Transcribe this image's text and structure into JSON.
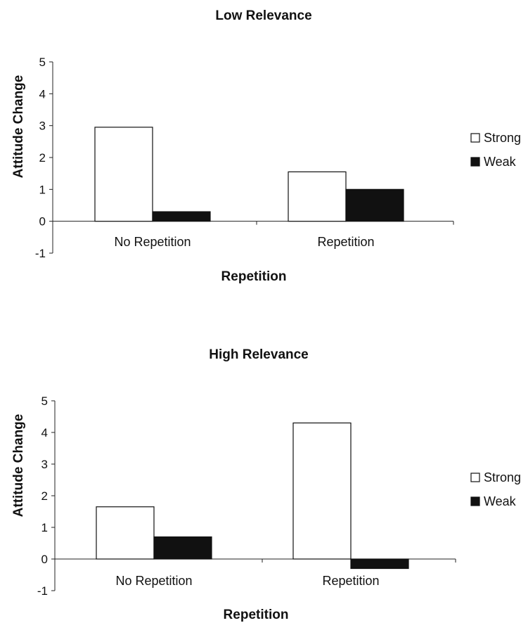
{
  "chart_data": [
    {
      "type": "bar",
      "title": "Low Relevance",
      "xlabel": "Repetition",
      "ylabel": "Attitude Change",
      "categories": [
        "No Repetition",
        "Repetition"
      ],
      "series": [
        {
          "name": "Strong",
          "values": [
            2.95,
            1.55
          ],
          "color": "#ffffff"
        },
        {
          "name": "Weak",
          "values": [
            0.3,
            1.0
          ],
          "color": "#111111"
        }
      ],
      "ylim": [
        -1,
        5
      ],
      "yticks": [
        "-1",
        "0",
        "1",
        "2",
        "3",
        "4",
        "5"
      ],
      "grid": false,
      "legend": "right"
    },
    {
      "type": "bar",
      "title": "High Relevance",
      "xlabel": "Repetition",
      "ylabel": "Attitude Change",
      "categories": [
        "No Repetition",
        "Repetition"
      ],
      "series": [
        {
          "name": "Strong",
          "values": [
            1.65,
            4.3
          ],
          "color": "#ffffff"
        },
        {
          "name": "Weak",
          "values": [
            0.7,
            -0.3
          ],
          "color": "#111111"
        }
      ],
      "ylim": [
        -1,
        5
      ],
      "yticks": [
        "-1",
        "0",
        "1",
        "2",
        "3",
        "4",
        "5"
      ],
      "grid": false,
      "legend": "right"
    }
  ]
}
